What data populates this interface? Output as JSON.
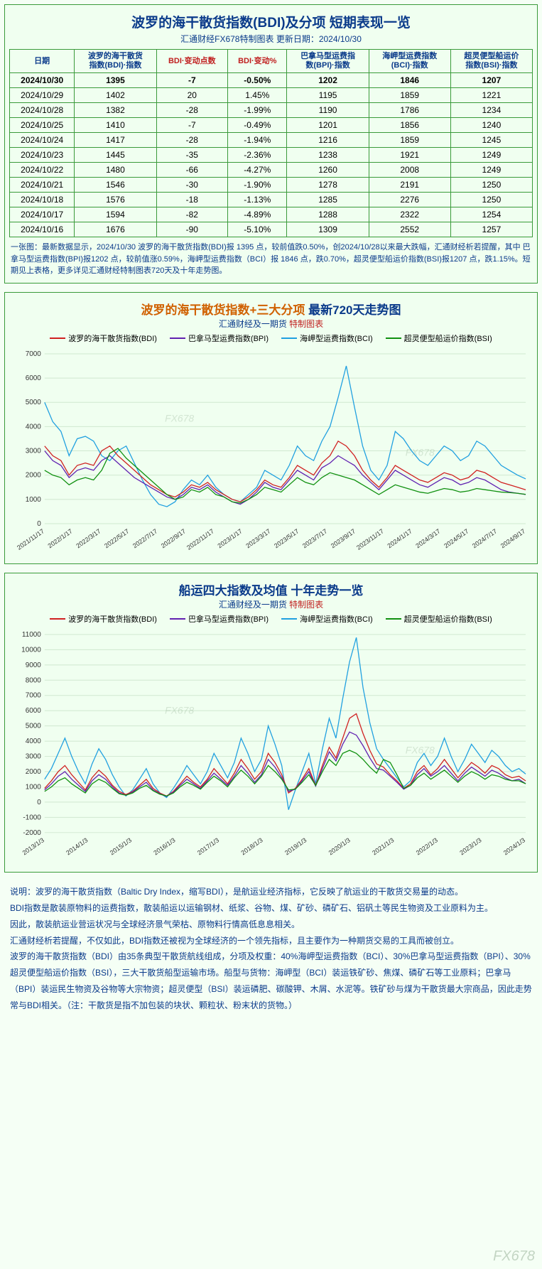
{
  "colors": {
    "border": "#3a9a3a",
    "bg": "#f0fff0",
    "text_blue": "#0a3a8a",
    "text_red": "#c02020",
    "grid": "#d0e8d0",
    "bdi": "#d02020",
    "bpi": "#6020b0",
    "bci": "#20a0e0",
    "bsi": "#109010"
  },
  "table": {
    "title": "波罗的海干散货指数(BDI)及分项  短期表现一览",
    "subtitle": "汇通财经FX678特制图表    更新日期：2024/10/30",
    "columns": [
      {
        "label": "日期",
        "red": false
      },
      {
        "label": "波罗的海干散货\n指数(BDI)·指数",
        "red": false
      },
      {
        "label": "BDI·变动点数",
        "red": true
      },
      {
        "label": "BDI·变动%",
        "red": true
      },
      {
        "label": "巴拿马型运费指\n数(BPI)·指数",
        "red": false
      },
      {
        "label": "海岬型运费指数\n(BCI)·指数",
        "red": false
      },
      {
        "label": "超灵便型船运价\n指数(BSI)·指数",
        "red": false
      }
    ],
    "rows": [
      {
        "bold": true,
        "cells": [
          "2024/10/30",
          "1395",
          "-7",
          "-0.50%",
          "1202",
          "1846",
          "1207"
        ]
      },
      {
        "bold": false,
        "cells": [
          "2024/10/29",
          "1402",
          "20",
          "1.45%",
          "1195",
          "1859",
          "1221"
        ]
      },
      {
        "bold": false,
        "cells": [
          "2024/10/28",
          "1382",
          "-28",
          "-1.99%",
          "1190",
          "1786",
          "1234"
        ]
      },
      {
        "bold": false,
        "cells": [
          "2024/10/25",
          "1410",
          "-7",
          "-0.49%",
          "1201",
          "1856",
          "1240"
        ]
      },
      {
        "bold": false,
        "cells": [
          "2024/10/24",
          "1417",
          "-28",
          "-1.94%",
          "1216",
          "1859",
          "1245"
        ]
      },
      {
        "bold": false,
        "cells": [
          "2024/10/23",
          "1445",
          "-35",
          "-2.36%",
          "1238",
          "1921",
          "1249"
        ]
      },
      {
        "bold": false,
        "cells": [
          "2024/10/22",
          "1480",
          "-66",
          "-4.27%",
          "1260",
          "2008",
          "1249"
        ]
      },
      {
        "bold": false,
        "cells": [
          "2024/10/21",
          "1546",
          "-30",
          "-1.90%",
          "1278",
          "2191",
          "1250"
        ]
      },
      {
        "bold": false,
        "cells": [
          "2024/10/18",
          "1576",
          "-18",
          "-1.13%",
          "1285",
          "2276",
          "1250"
        ]
      },
      {
        "bold": false,
        "cells": [
          "2024/10/17",
          "1594",
          "-82",
          "-4.89%",
          "1288",
          "2322",
          "1254"
        ]
      },
      {
        "bold": false,
        "cells": [
          "2024/10/16",
          "1676",
          "-90",
          "-5.10%",
          "1309",
          "2552",
          "1257"
        ]
      }
    ],
    "note": "一张图：最新数据显示，2024/10/30 波罗的海干散货指数(BDI)报 1395 点，较前值跌0.50%，创2024/10/28以来最大跌幅，汇通财经析若提醒，其中 巴拿马型运费指数(BPI)报1202 点，较前值涨0.59%，海岬型运费指数（BCI）报 1846 点，跌0.70%，超灵便型船运价指数(BSI)报1207 点，跌1.15%。短期见上表格，更多详见汇通财经特制图表720天及十年走势图。"
  },
  "chart720": {
    "title_a": "波罗的海干散货指数+三大分项",
    "title_b": "最新720天走势图",
    "subtitle_a": "汇通财经及一期货",
    "subtitle_b": "特制图表",
    "legend": [
      {
        "label": "波罗的海干散货指数(BDI)",
        "color": "#d02020"
      },
      {
        "label": "巴拿马型运费指数(BPI)",
        "color": "#6020b0"
      },
      {
        "label": "海岬型运费指数(BCI)",
        "color": "#20a0e0"
      },
      {
        "label": "超灵便型船运价指数(BSI)",
        "color": "#109010"
      }
    ],
    "ylim": [
      0,
      7000
    ],
    "ytick_step": 1000,
    "xlabels": [
      "2021/11/17",
      "2022/1/17",
      "2022/3/17",
      "2022/5/17",
      "2022/7/17",
      "2022/9/17",
      "2022/11/17",
      "2023/1/17",
      "2023/3/17",
      "2023/5/17",
      "2023/7/17",
      "2023/9/17",
      "2023/11/17",
      "2024/1/17",
      "2024/3/17",
      "2024/5/17",
      "2024/7/17",
      "2024/9/17"
    ],
    "n": 60,
    "series": {
      "bci": [
        5000,
        4200,
        3800,
        2800,
        3500,
        3600,
        3400,
        2800,
        2600,
        3000,
        3200,
        2500,
        1800,
        1200,
        800,
        700,
        900,
        1400,
        1800,
        1600,
        2000,
        1500,
        1200,
        1000,
        900,
        1200,
        1500,
        2200,
        2000,
        1800,
        2400,
        3200,
        2800,
        2600,
        3400,
        4000,
        5200,
        6500,
        4800,
        3200,
        2200,
        1800,
        2400,
        3800,
        3500,
        3000,
        2600,
        2400,
        2800,
        3200,
        3000,
        2600,
        2800,
        3400,
        3200,
        2800,
        2400,
        2200,
        2000,
        1846
      ],
      "bdi": [
        3200,
        2800,
        2600,
        2000,
        2400,
        2500,
        2400,
        3000,
        3200,
        2800,
        2500,
        2200,
        1900,
        1600,
        1400,
        1200,
        1100,
        1300,
        1600,
        1500,
        1700,
        1400,
        1200,
        1000,
        900,
        1100,
        1400,
        1800,
        1600,
        1500,
        1900,
        2400,
        2200,
        2000,
        2500,
        2800,
        3400,
        3200,
        2800,
        2200,
        1800,
        1500,
        1900,
        2400,
        2200,
        2000,
        1800,
        1700,
        1900,
        2100,
        2000,
        1800,
        1900,
        2200,
        2100,
        1900,
        1700,
        1600,
        1500,
        1395
      ],
      "bpi": [
        3000,
        2600,
        2400,
        1900,
        2200,
        2300,
        2200,
        2600,
        2800,
        2500,
        2200,
        1900,
        1700,
        1500,
        1300,
        1100,
        1000,
        1200,
        1500,
        1400,
        1600,
        1300,
        1100,
        900,
        800,
        1000,
        1300,
        1700,
        1500,
        1400,
        1800,
        2200,
        2000,
        1800,
        2300,
        2500,
        2800,
        2600,
        2400,
        2000,
        1700,
        1400,
        1800,
        2200,
        2000,
        1800,
        1600,
        1500,
        1700,
        1900,
        1800,
        1600,
        1700,
        1900,
        1800,
        1600,
        1400,
        1300,
        1250,
        1202
      ],
      "bsi": [
        2200,
        2000,
        1900,
        1600,
        1800,
        1900,
        1800,
        2200,
        2900,
        3100,
        2700,
        2400,
        2100,
        1800,
        1500,
        1200,
        1000,
        1100,
        1400,
        1300,
        1500,
        1200,
        1100,
        900,
        850,
        1000,
        1200,
        1500,
        1400,
        1300,
        1600,
        1900,
        1700,
        1600,
        1900,
        2100,
        2000,
        1900,
        1800,
        1600,
        1400,
        1200,
        1400,
        1600,
        1500,
        1400,
        1300,
        1250,
        1350,
        1450,
        1400,
        1300,
        1350,
        1450,
        1400,
        1350,
        1300,
        1280,
        1250,
        1207
      ]
    }
  },
  "chart10y": {
    "title": "船运四大指数及均值 十年走势一览",
    "subtitle_a": "汇通财经及一期货",
    "subtitle_b": "特制图表",
    "legend": [
      {
        "label": "波罗的海干散货指数(BDI)",
        "color": "#d02020"
      },
      {
        "label": "巴拿马型运费指数(BPI)",
        "color": "#6020b0"
      },
      {
        "label": "海岬型运费指数(BCI)",
        "color": "#20a0e0"
      },
      {
        "label": "超灵便型船运价指数(BSI)",
        "color": "#109010"
      }
    ],
    "ylim": [
      -2000,
      11000
    ],
    "ytick_step": 1000,
    "xlabels": [
      "2013/1/3",
      "2014/1/3",
      "2015/1/3",
      "2016/1/3",
      "2017/1/3",
      "2018/1/3",
      "2019/1/3",
      "2020/1/3",
      "2021/1/3",
      "2022/1/3",
      "2023/1/3",
      "2024/1/3"
    ],
    "n": 72,
    "series": {
      "bci": [
        1500,
        2200,
        3200,
        4200,
        3000,
        2000,
        1200,
        2500,
        3500,
        2800,
        1800,
        1000,
        400,
        800,
        1500,
        2200,
        1200,
        600,
        300,
        900,
        1600,
        2400,
        1800,
        1200,
        2000,
        3200,
        2400,
        1600,
        2600,
        4200,
        3200,
        2000,
        2800,
        5000,
        3800,
        2400,
        -500,
        800,
        2000,
        3200,
        1200,
        3500,
        5500,
        4200,
        6800,
        9200,
        10800,
        7500,
        5200,
        3500,
        2800,
        2200,
        1600,
        1000,
        1400,
        2600,
        3200,
        2400,
        3000,
        4200,
        3000,
        2000,
        2800,
        3800,
        3200,
        2600,
        3400,
        3000,
        2400,
        2000,
        2200,
        1846
      ],
      "bdi": [
        900,
        1400,
        2000,
        2400,
        1800,
        1300,
        800,
        1600,
        2100,
        1700,
        1100,
        700,
        500,
        700,
        1100,
        1500,
        900,
        600,
        400,
        700,
        1200,
        1700,
        1300,
        1000,
        1500,
        2200,
        1700,
        1200,
        1900,
        2800,
        2200,
        1500,
        2000,
        3200,
        2600,
        1800,
        600,
        900,
        1500,
        2200,
        1100,
        2400,
        3600,
        2900,
        4200,
        5500,
        5800,
        4500,
        3400,
        2500,
        2300,
        1800,
        1400,
        900,
        1200,
        2000,
        2400,
        1800,
        2200,
        2800,
        2200,
        1600,
        2100,
        2600,
        2300,
        1900,
        2400,
        2200,
        1800,
        1600,
        1700,
        1395
      ],
      "bpi": [
        800,
        1200,
        1700,
        2000,
        1500,
        1100,
        700,
        1400,
        1800,
        1500,
        1000,
        600,
        450,
        650,
        1000,
        1300,
        800,
        550,
        380,
        650,
        1100,
        1500,
        1200,
        900,
        1400,
        1900,
        1500,
        1100,
        1700,
        2400,
        1900,
        1300,
        1800,
        2800,
        2300,
        1600,
        700,
        850,
        1400,
        2000,
        1050,
        2200,
        3300,
        2700,
        3800,
        4600,
        4400,
        3700,
        2900,
        2200,
        2100,
        1700,
        1300,
        850,
        1100,
        1800,
        2200,
        1700,
        2000,
        2400,
        1900,
        1400,
        1900,
        2300,
        2000,
        1700,
        2100,
        1900,
        1600,
        1400,
        1500,
        1202
      ],
      "bsi": [
        700,
        1000,
        1400,
        1600,
        1200,
        900,
        600,
        1200,
        1500,
        1300,
        900,
        550,
        450,
        600,
        900,
        1100,
        750,
        520,
        400,
        600,
        1000,
        1300,
        1100,
        850,
        1300,
        1700,
        1400,
        1000,
        1600,
        2100,
        1700,
        1200,
        1700,
        2400,
        2000,
        1500,
        800,
        850,
        1300,
        1800,
        1100,
        2000,
        2800,
        2400,
        3200,
        3400,
        3200,
        2800,
        2300,
        1900,
        2800,
        2600,
        1800,
        900,
        1100,
        1600,
        1900,
        1500,
        1800,
        2100,
        1700,
        1300,
        1700,
        2000,
        1800,
        1500,
        1800,
        1700,
        1500,
        1400,
        1400,
        1207
      ]
    }
  },
  "description": {
    "lines": [
      "说明：波罗的海干散货指数（Baltic Dry Index，缩写BDI），是航运业经济指标，它反映了航运业的干散货交易量的动态。",
      "BDI指数是散装原物料的运费指数，散装船运以运输钢材、纸浆、谷物、煤、矿砂、磷矿石、铝矾土等民生物资及工业原料为主。",
      "因此，散装航运业营运状况与全球经济景气荣枯、原物料行情高低息息相关。",
      "汇通财经析若提醒，不仅如此，BDI指数还被视为全球经济的一个领先指标，且主要作为一种期货交易的工具而被创立。",
      "波罗的海干散货指数（BDI）由35条典型干散货航线组成，分项及权重：40%海岬型运费指数（BCI）、30%巴拿马型运费指数（BPI）、30%超灵便型船运价指数（BSI），三大干散货船型运输市场。船型与货物：海岬型（BCI）装运铁矿砂、焦煤、磷矿石等工业原料；巴拿马（BPI）装运民生物资及谷物等大宗物资；超灵便型（BSI）装运磷肥、碳酸钾、木屑、水泥等。铁矿砂与煤为干散货最大宗商品，因此走势常与BDI相关。（注：干散货是指不加包装的块状、颗粒状、粉末状的货物。）"
    ]
  },
  "watermark": "FX678"
}
